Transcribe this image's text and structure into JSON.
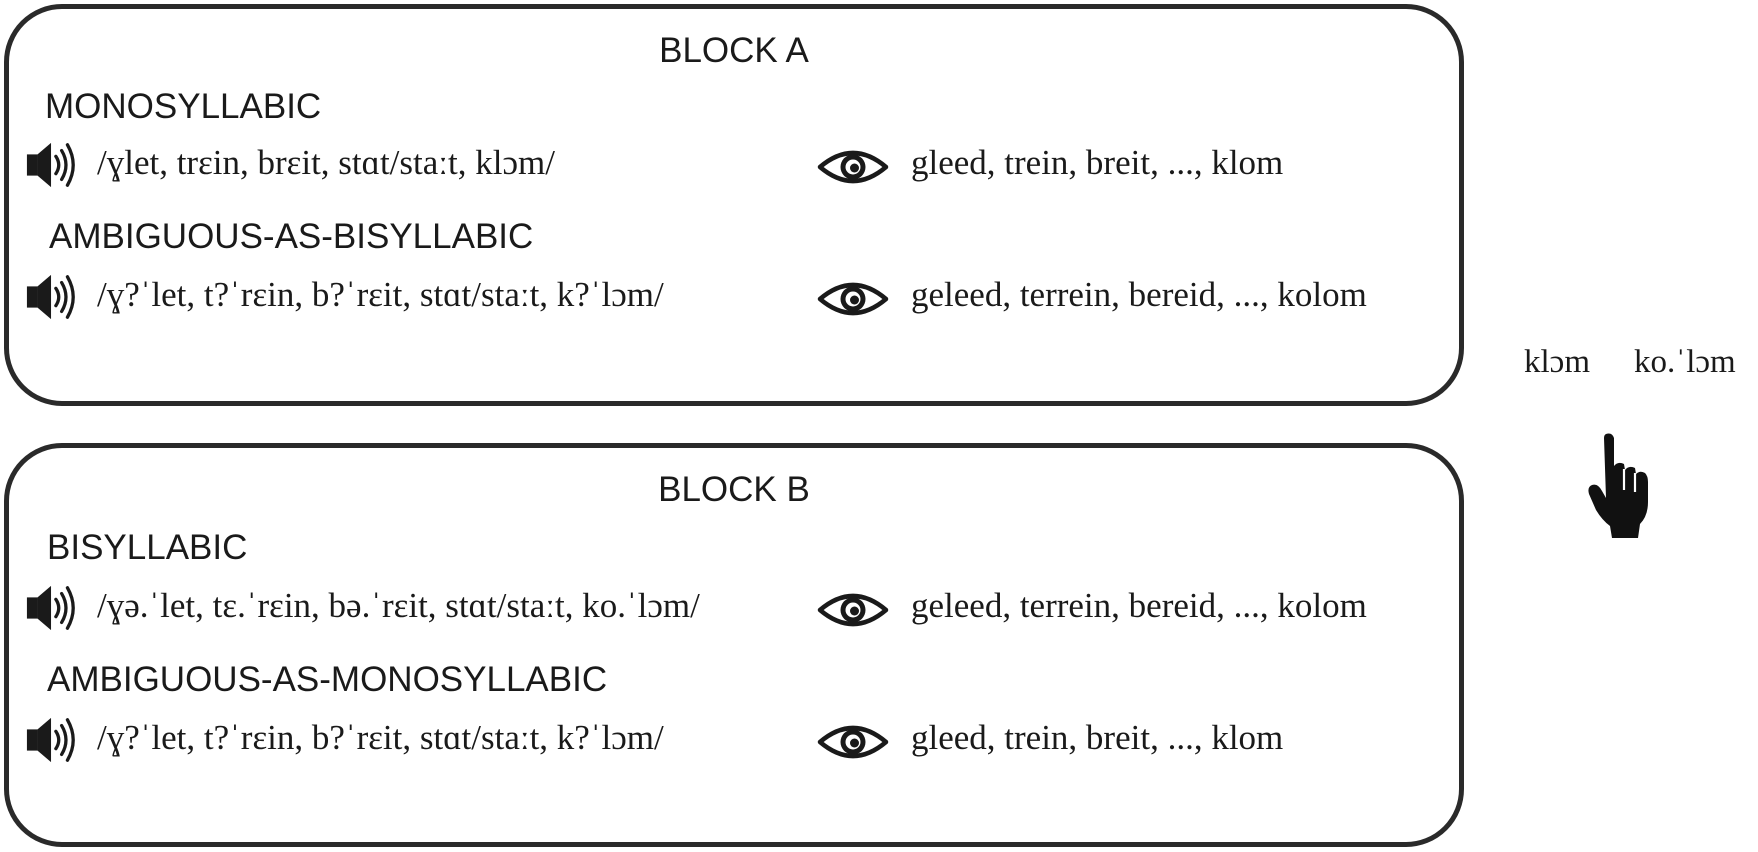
{
  "block_a": {
    "title": "BLOCK A",
    "conditions": [
      {
        "label": "MONOSYLLABIC",
        "ipa": "/ɣlet, trɛin, brɛit, stɑt/staːt, klɔm/",
        "orthography": "gleed, trein, breit, ..., klom"
      },
      {
        "label": "AMBIGUOUS-AS-BISYLLABIC",
        "ipa": "/ɣ?ˈlet, t?ˈrɛin, b?ˈrɛit, stɑt/staːt, k?ˈlɔm/",
        "orthography": "geleed, terrein, bereid, ..., kolom"
      }
    ]
  },
  "block_b": {
    "title": "BLOCK B",
    "conditions": [
      {
        "label": "BISYLLABIC",
        "ipa": "/ɣə.ˈlet, tɛ.ˈrɛin, bə.ˈrɛit, stɑt/staːt, ko.ˈlɔm/",
        "orthography": "geleed, terrein, bereid, ..., kolom"
      },
      {
        "label": "AMBIGUOUS-AS-MONOSYLLABIC",
        "ipa": "/ɣ?ˈlet, t?ˈrɛin, b?ˈrɛit, stɑt/staːt, k?ˈlɔm/",
        "orthography": "gleed, trein, breit, ..., klom"
      }
    ]
  },
  "response": {
    "option_left": "klɔm",
    "option_right": "ko.ˈlɔm"
  },
  "icons": {
    "audio": "speaker-icon",
    "visual": "eye-icon",
    "response": "pointing-hand-icon"
  },
  "colors": {
    "ink": "#1a1a1a",
    "border": "#2a2a2a",
    "background": "#ffffff"
  }
}
